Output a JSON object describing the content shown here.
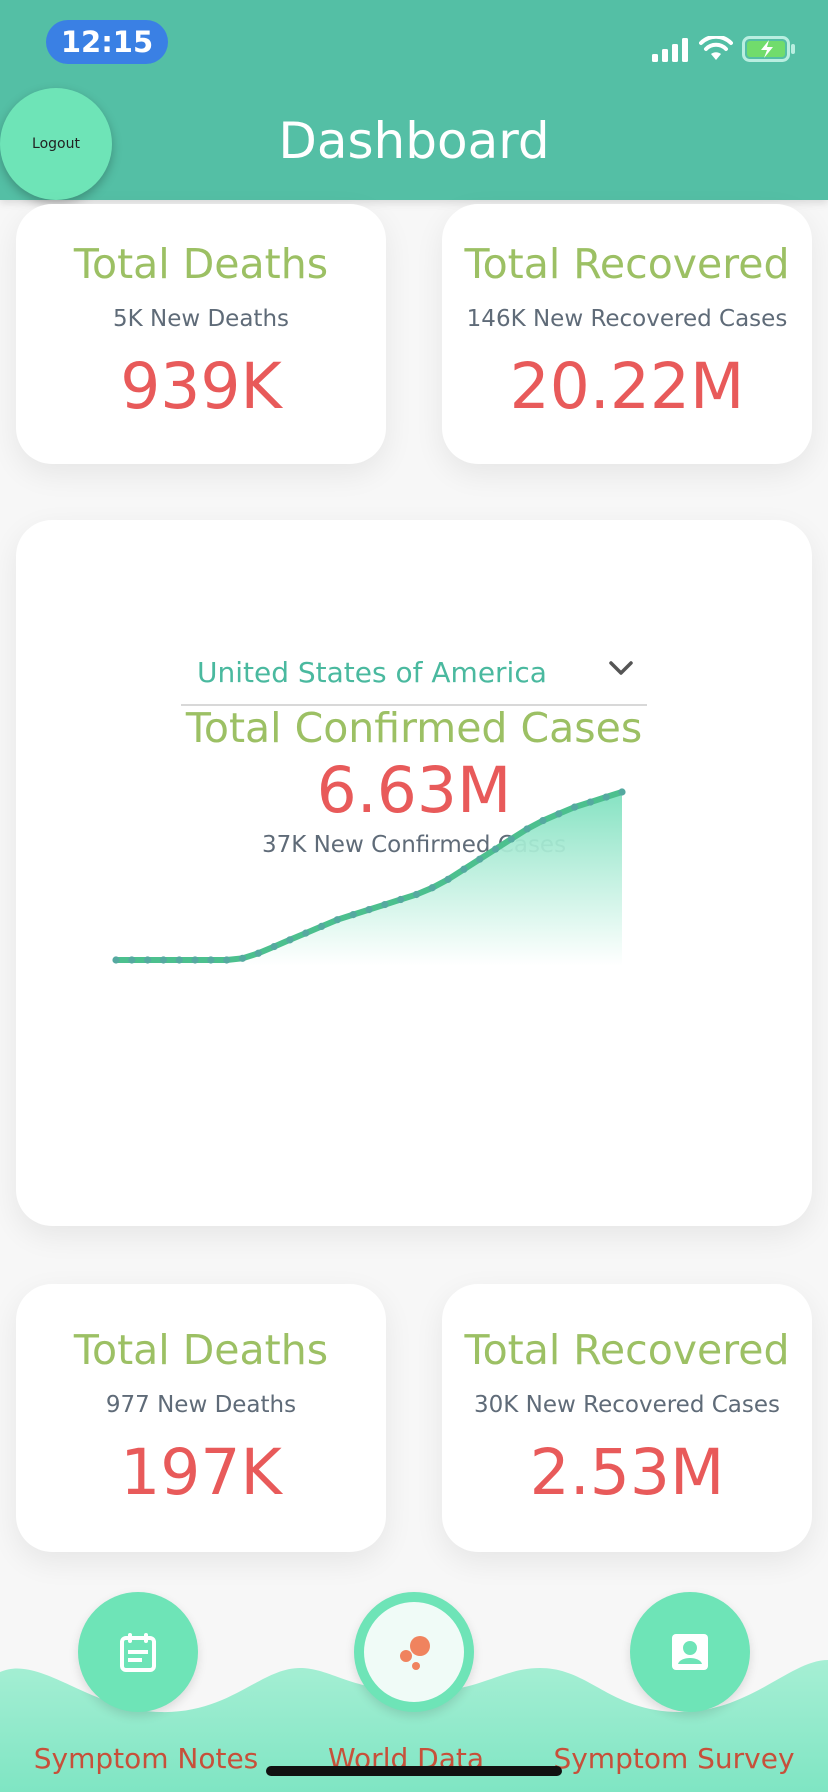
{
  "status_bar": {
    "time": "12:15"
  },
  "header": {
    "title": "Dashboard",
    "logout_label": "Logout"
  },
  "global_stats": {
    "deaths": {
      "title": "Total Deaths",
      "subtitle": "5K New Deaths",
      "value": "939K"
    },
    "recovered": {
      "title": "Total Recovered",
      "subtitle": "146K New Recovered Cases",
      "value": "20.22M"
    }
  },
  "country_card": {
    "selected_country": "United States of America",
    "title": "Total Confirmed Cases",
    "value": "6.63M",
    "subtitle": "37K New Confirmed Cases"
  },
  "country_stats": {
    "deaths": {
      "title": "Total Deaths",
      "subtitle": "977 New Deaths",
      "value": "197K"
    },
    "recovered": {
      "title": "Total Recovered",
      "subtitle": "30K New Recovered Cases",
      "value": "2.53M"
    }
  },
  "chart_data": {
    "type": "area",
    "title": "",
    "xlabel": "",
    "ylabel": "",
    "x": [
      0,
      1,
      2,
      3,
      4,
      5,
      6,
      7,
      8,
      9,
      10,
      11,
      12,
      13,
      14,
      15,
      16,
      17,
      18,
      19,
      20,
      21,
      22,
      23,
      24,
      25,
      26,
      27,
      28,
      29,
      30,
      31,
      32
    ],
    "series": [
      {
        "values": [
          0,
          0,
          0,
          0,
          0,
          0,
          0,
          0,
          0.01,
          0.04,
          0.08,
          0.12,
          0.16,
          0.2,
          0.24,
          0.27,
          0.3,
          0.33,
          0.36,
          0.39,
          0.43,
          0.48,
          0.54,
          0.6,
          0.66,
          0.72,
          0.78,
          0.83,
          0.87,
          0.91,
          0.94,
          0.97,
          1.0
        ]
      }
    ],
    "colors": {
      "line": "#4cc08e",
      "dots": "#55a9a0",
      "fill_top": "#7fe1bf",
      "fill_bottom": "#ffffff"
    },
    "grid": false,
    "axes_visible": false
  },
  "bottom_nav": {
    "items": [
      {
        "label": "Symptom Notes",
        "icon": "notes-icon"
      },
      {
        "label": "World Data",
        "icon": "world-data-icon"
      },
      {
        "label": "Symptom Survey",
        "icon": "survey-icon"
      }
    ]
  },
  "colors": {
    "header": "#54bfa5",
    "accent": "#6ee4b7",
    "title_green": "#9cc064",
    "value_red": "#e85a5a",
    "nav_label": "#c7503a"
  }
}
